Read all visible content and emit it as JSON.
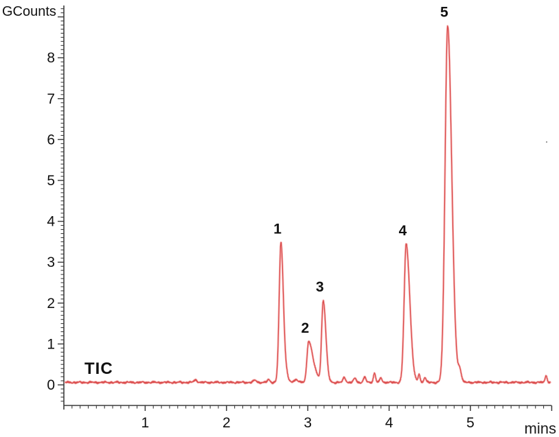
{
  "chart_data": {
    "type": "line",
    "title": "",
    "trace_label": "TIC",
    "xlabel": "mins",
    "ylabel": "GCounts",
    "xlim": [
      0,
      6
    ],
    "ylim": [
      -0.55,
      9.3
    ],
    "x_major_ticks": [
      1,
      2,
      3,
      4,
      5
    ],
    "x_minor_tick_step": 0.1,
    "y_major_ticks": [
      0,
      1,
      2,
      3,
      4,
      5,
      6,
      7,
      8
    ],
    "y_minor_tick_step": 0.1,
    "grid": false,
    "legend": "none",
    "line_color": "#d94b4b",
    "line_halo_color": "#f6b0b0",
    "axis_color": "#3c3c3c",
    "baseline_level": 0.06,
    "peaks": [
      {
        "label": "1",
        "rt": 2.67,
        "height": 3.42,
        "sigma_l": 0.022,
        "sigma_r": 0.03
      },
      {
        "label": "2",
        "rt": 3.01,
        "height": 1.0,
        "sigma_l": 0.02,
        "sigma_r": 0.048
      },
      {
        "label": "3",
        "rt": 3.19,
        "height": 2.0,
        "sigma_l": 0.02,
        "sigma_r": 0.032
      },
      {
        "label": "4",
        "rt": 4.21,
        "height": 3.38,
        "sigma_l": 0.025,
        "sigma_r": 0.045
      },
      {
        "label": "5",
        "rt": 4.72,
        "height": 8.72,
        "sigma_l": 0.032,
        "sigma_r": 0.05
      }
    ],
    "minor_features": [
      {
        "rt": 1.62,
        "height": 0.06,
        "sigma": 0.02
      },
      {
        "rt": 2.35,
        "height": 0.05,
        "sigma": 0.02
      },
      {
        "rt": 2.52,
        "height": 0.06,
        "sigma": 0.018
      },
      {
        "rt": 2.74,
        "height": 0.16,
        "sigma": 0.02
      },
      {
        "rt": 2.86,
        "height": 0.07,
        "sigma": 0.025
      },
      {
        "rt": 3.1,
        "height": 0.12,
        "sigma": 0.04
      },
      {
        "rt": 3.45,
        "height": 0.12,
        "sigma": 0.016
      },
      {
        "rt": 3.58,
        "height": 0.1,
        "sigma": 0.016
      },
      {
        "rt": 3.7,
        "height": 0.12,
        "sigma": 0.016
      },
      {
        "rt": 3.82,
        "height": 0.22,
        "sigma": 0.014
      },
      {
        "rt": 3.9,
        "height": 0.1,
        "sigma": 0.016
      },
      {
        "rt": 4.37,
        "height": 0.2,
        "sigma": 0.012
      },
      {
        "rt": 4.44,
        "height": 0.12,
        "sigma": 0.014
      },
      {
        "rt": 4.87,
        "height": 0.28,
        "sigma": 0.02
      },
      {
        "rt": 5.93,
        "height": 0.18,
        "sigma": 0.012
      }
    ]
  }
}
